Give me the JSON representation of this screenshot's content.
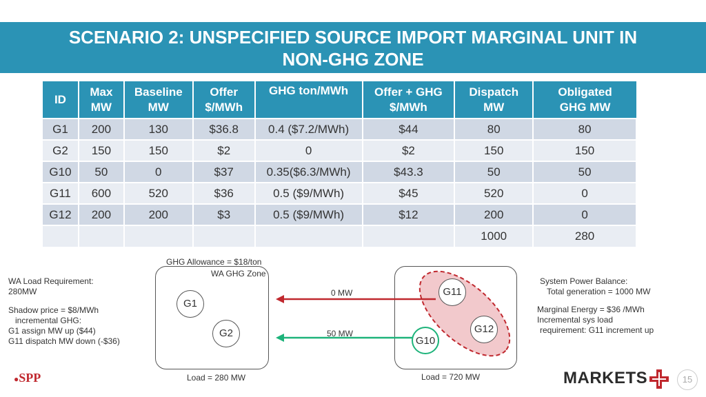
{
  "title": {
    "line1": "SCENARIO 2: UNSPECIFIED SOURCE IMPORT MARGINAL UNIT IN",
    "line2": "NON-GHG ZONE"
  },
  "table": {
    "headers": [
      [
        "ID",
        ""
      ],
      [
        "Max",
        "MW"
      ],
      [
        "Baseline",
        "MW"
      ],
      [
        "Offer",
        "$/MWh"
      ],
      [
        "GHG ton/MWh",
        ""
      ],
      [
        "Offer + GHG",
        "$/MWh"
      ],
      [
        "Dispatch",
        "MW"
      ],
      [
        "Obligated",
        "GHG MW"
      ]
    ],
    "rows": [
      [
        "G1",
        "200",
        "130",
        "$36.8",
        "0.4 ($7.2/MWh)",
        "$44",
        "80",
        "80"
      ],
      [
        "G2",
        "150",
        "150",
        "$2",
        "0",
        "$2",
        "150",
        "150"
      ],
      [
        "G10",
        "50",
        "0",
        "$37",
        "0.35($6.3/MWh)",
        "$43.3",
        "50",
        "50"
      ],
      [
        "G11",
        "600",
        "520",
        "$36",
        "0.5 ($9/MWh)",
        "$45",
        "520",
        "0"
      ],
      [
        "G12",
        "200",
        "200",
        "$3",
        "0.5 ($9/MWh)",
        "$12",
        "200",
        "0"
      ],
      [
        "",
        "",
        "",
        "",
        "",
        "",
        "1000",
        "280"
      ]
    ]
  },
  "left_notes": {
    "wa_load": [
      "WA Load Requirement:",
      "280MW"
    ],
    "shadow": [
      "Shadow price = $8/MWh",
      "incremental GHG:",
      "G1 assign MW up ($44)",
      "G11 dispatch MW down (-$36)"
    ]
  },
  "right_notes": {
    "balance": [
      "System Power Balance:",
      "Total generation = 1000 MW"
    ],
    "marginal": [
      "Marginal Energy = $36 /MWh",
      "Incremental sys load",
      "requirement: G11 increment up"
    ]
  },
  "diagram": {
    "allowance": "GHG Allowance = $18/ton",
    "zone_label": "WA GHG Zone",
    "flow_top": "0 MW",
    "flow_bottom": "50 MW",
    "load_left": "Load = 280 MW",
    "load_right": "Load = 720 MW",
    "gens": {
      "g1": "G1",
      "g2": "G2",
      "g11": "G11",
      "g12": "G12",
      "g10": "G10"
    },
    "colors": {
      "red_arrow": "#c0282e",
      "green_arrow": "#1db37a",
      "cluster_fill": "#f2c9cc",
      "cluster_border": "#c0282e"
    }
  },
  "footer": {
    "spp": "SPP",
    "markets": "MARKETS",
    "page": "15"
  }
}
